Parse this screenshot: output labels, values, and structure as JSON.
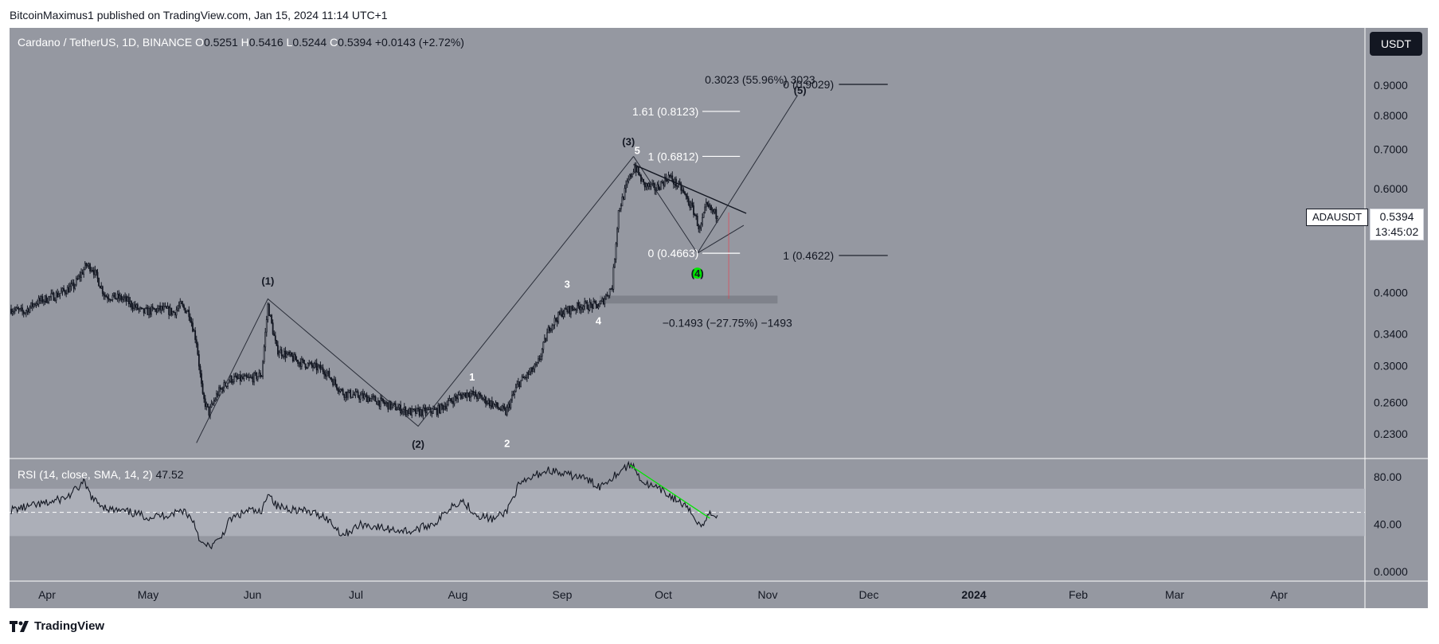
{
  "header": {
    "publisher_line": "BitcoinMaximus1 published on TradingView.com, Jan 15, 2024 11:14 UTC+1"
  },
  "legend": {
    "symbol": "Cardano / TetherUS, 1D, BINANCE",
    "o_label": "O",
    "o_value": "0.5251",
    "h_label": "H",
    "h_value": "0.5416",
    "l_label": "L",
    "l_value": "0.5244",
    "c_label": "C",
    "c_value": "0.5394",
    "change": "+0.0143 (+2.72%)"
  },
  "currency_button": "USDT",
  "ticker_tag": "ADAUSDT",
  "last_price": "0.5394",
  "countdown": "13:45:02",
  "rsi_legend": {
    "label": "RSI (14, close, SMA, 14, 2)",
    "value": "47.52"
  },
  "brand": "TradingView",
  "colors": {
    "bg": "#9598a1",
    "candle": "#131722",
    "green": "#00e600",
    "white": "#ffffff"
  },
  "chart_data": {
    "type": "candlestick",
    "title": "Cardano / TetherUS, 1D, BINANCE",
    "x_ticks": [
      "Apr",
      "May",
      "Jun",
      "Jul",
      "Aug",
      "Sep",
      "Oct",
      "Nov",
      "Dec",
      "2024",
      "Feb",
      "Mar",
      "Apr"
    ],
    "y_ticks": [
      "0.9000",
      "0.8000",
      "0.7000",
      "0.6000",
      "0.4000",
      "0.3400",
      "0.3000",
      "0.2600",
      "0.2300"
    ],
    "rsi_ticks": [
      "80.00",
      "40.00",
      "0.0000"
    ],
    "price_path": [
      {
        "d": 0,
        "p": 0.375
      },
      {
        "d": 10,
        "p": 0.37
      },
      {
        "d": 20,
        "p": 0.385
      },
      {
        "d": 35,
        "p": 0.395
      },
      {
        "d": 50,
        "p": 0.41
      },
      {
        "d": 60,
        "p": 0.445
      },
      {
        "d": 65,
        "p": 0.44
      },
      {
        "d": 75,
        "p": 0.395
      },
      {
        "d": 90,
        "p": 0.39
      },
      {
        "d": 105,
        "p": 0.37
      },
      {
        "d": 120,
        "p": 0.375
      },
      {
        "d": 130,
        "p": 0.37
      },
      {
        "d": 135,
        "p": 0.38
      },
      {
        "d": 142,
        "p": 0.37
      },
      {
        "d": 148,
        "p": 0.33
      },
      {
        "d": 153,
        "p": 0.265
      },
      {
        "d": 158,
        "p": 0.25
      },
      {
        "d": 165,
        "p": 0.27
      },
      {
        "d": 175,
        "p": 0.285
      },
      {
        "d": 190,
        "p": 0.285
      },
      {
        "d": 200,
        "p": 0.29
      },
      {
        "d": 205,
        "p": 0.38
      },
      {
        "d": 212,
        "p": 0.32
      },
      {
        "d": 230,
        "p": 0.305
      },
      {
        "d": 250,
        "p": 0.295
      },
      {
        "d": 265,
        "p": 0.27
      },
      {
        "d": 285,
        "p": 0.265
      },
      {
        "d": 300,
        "p": 0.258
      },
      {
        "d": 320,
        "p": 0.25
      },
      {
        "d": 340,
        "p": 0.252
      },
      {
        "d": 355,
        "p": 0.265
      },
      {
        "d": 365,
        "p": 0.27
      },
      {
        "d": 375,
        "p": 0.265
      },
      {
        "d": 385,
        "p": 0.258
      },
      {
        "d": 395,
        "p": 0.25
      },
      {
        "d": 405,
        "p": 0.28
      },
      {
        "d": 420,
        "p": 0.3
      },
      {
        "d": 430,
        "p": 0.35
      },
      {
        "d": 440,
        "p": 0.37
      },
      {
        "d": 455,
        "p": 0.38
      },
      {
        "d": 470,
        "p": 0.38
      },
      {
        "d": 480,
        "p": 0.41
      },
      {
        "d": 485,
        "p": 0.55
      },
      {
        "d": 493,
        "p": 0.62
      },
      {
        "d": 498,
        "p": 0.655
      },
      {
        "d": 505,
        "p": 0.61
      },
      {
        "d": 515,
        "p": 0.6
      },
      {
        "d": 525,
        "p": 0.63
      },
      {
        "d": 535,
        "p": 0.6
      },
      {
        "d": 545,
        "p": 0.55
      },
      {
        "d": 550,
        "p": 0.51
      },
      {
        "d": 555,
        "p": 0.56
      },
      {
        "d": 560,
        "p": 0.55
      },
      {
        "d": 564,
        "p": 0.5394
      }
    ],
    "waves": [
      {
        "label": "(1)",
        "price": 0.39
      },
      {
        "label": "(2)",
        "price": 0.237
      },
      {
        "label": "(3)",
        "price": 0.6812
      },
      {
        "label": "(4)",
        "price": 0.4663
      },
      {
        "label": "(5)",
        "price": 0.8612
      },
      {
        "label": "1",
        "price": 0.28
      },
      {
        "label": "2",
        "price": 0.24
      },
      {
        "label": "3",
        "price": 0.41
      },
      {
        "label": "4",
        "price": 0.355
      },
      {
        "label": "5",
        "price": 0.675
      }
    ],
    "fib_levels": [
      {
        "label": "0 (0.4663)",
        "value": 0.4663
      },
      {
        "label": "1 (0.6812)",
        "value": 0.6812
      },
      {
        "label": "1.61 (0.8123)",
        "value": 0.8123
      }
    ],
    "target_levels": [
      {
        "label": "0 (0.9029)",
        "value": 0.9029
      },
      {
        "label": "1 (0.4622)",
        "value": 0.4622
      }
    ],
    "measure_up": "0.3023 (55.96%) 3023",
    "measure_down": "−0.1493 (−27.75%) −1493",
    "support_zone": [
      0.383,
      0.395
    ],
    "rsi": {
      "period": 14,
      "current": 47.52,
      "upper": 70,
      "lower": 30,
      "mid": 50,
      "path": [
        {
          "d": 0,
          "v": 52
        },
        {
          "d": 15,
          "v": 55
        },
        {
          "d": 30,
          "v": 58
        },
        {
          "d": 45,
          "v": 63
        },
        {
          "d": 58,
          "v": 75
        },
        {
          "d": 66,
          "v": 60
        },
        {
          "d": 80,
          "v": 52
        },
        {
          "d": 95,
          "v": 50
        },
        {
          "d": 110,
          "v": 46
        },
        {
          "d": 125,
          "v": 48
        },
        {
          "d": 138,
          "v": 52
        },
        {
          "d": 146,
          "v": 42
        },
        {
          "d": 152,
          "v": 23
        },
        {
          "d": 158,
          "v": 21
        },
        {
          "d": 166,
          "v": 26
        },
        {
          "d": 175,
          "v": 44
        },
        {
          "d": 190,
          "v": 52
        },
        {
          "d": 200,
          "v": 49
        },
        {
          "d": 205,
          "v": 68
        },
        {
          "d": 212,
          "v": 55
        },
        {
          "d": 230,
          "v": 52
        },
        {
          "d": 250,
          "v": 47
        },
        {
          "d": 265,
          "v": 31
        },
        {
          "d": 280,
          "v": 40
        },
        {
          "d": 300,
          "v": 36
        },
        {
          "d": 320,
          "v": 34
        },
        {
          "d": 340,
          "v": 42
        },
        {
          "d": 352,
          "v": 56
        },
        {
          "d": 360,
          "v": 60
        },
        {
          "d": 372,
          "v": 48
        },
        {
          "d": 385,
          "v": 44
        },
        {
          "d": 395,
          "v": 50
        },
        {
          "d": 405,
          "v": 72
        },
        {
          "d": 420,
          "v": 82
        },
        {
          "d": 430,
          "v": 86
        },
        {
          "d": 440,
          "v": 82
        },
        {
          "d": 455,
          "v": 80
        },
        {
          "d": 470,
          "v": 72
        },
        {
          "d": 480,
          "v": 80
        },
        {
          "d": 490,
          "v": 88
        },
        {
          "d": 496,
          "v": 90
        },
        {
          "d": 505,
          "v": 75
        },
        {
          "d": 520,
          "v": 68
        },
        {
          "d": 535,
          "v": 58
        },
        {
          "d": 545,
          "v": 47
        },
        {
          "d": 552,
          "v": 38
        },
        {
          "d": 558,
          "v": 50
        },
        {
          "d": 564,
          "v": 47.52
        }
      ]
    }
  }
}
